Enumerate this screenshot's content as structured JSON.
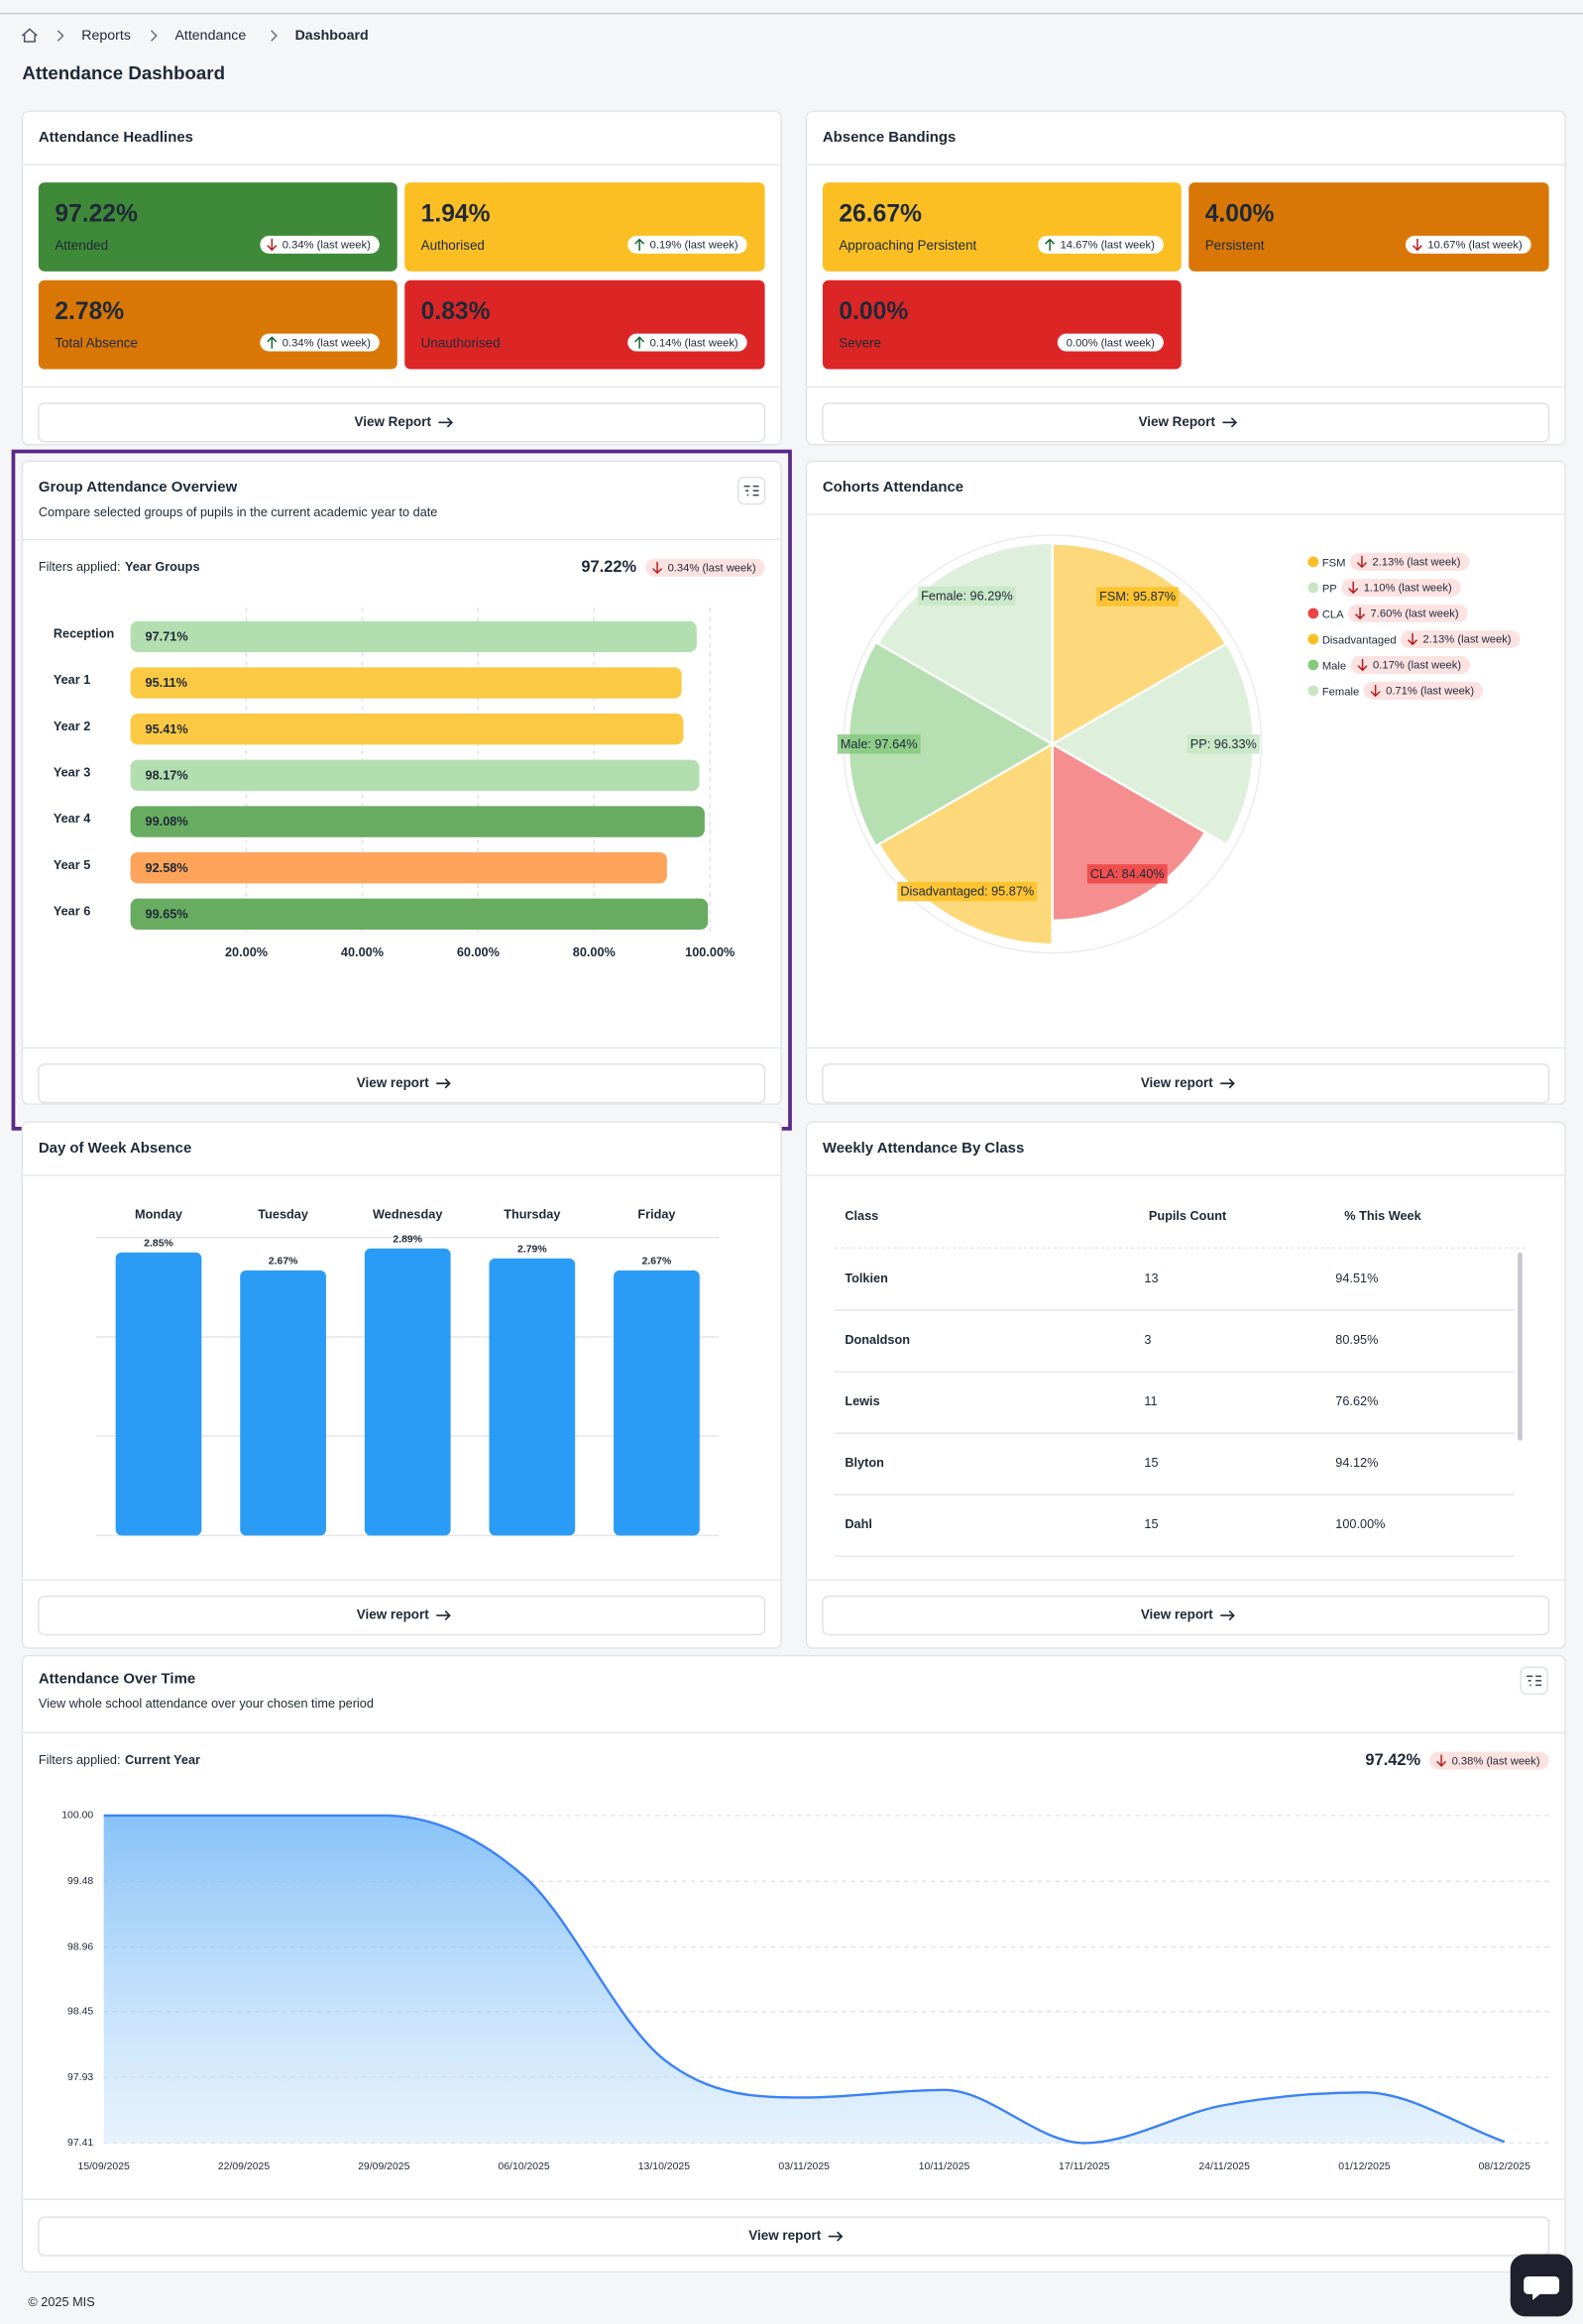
{
  "page": {
    "breadcrumb": [
      "Reports",
      "Attendance",
      "Dashboard"
    ],
    "title": "Attendance Dashboard",
    "headlines": {
      "title": "Attendance Headlines",
      "cards": [
        {
          "value": "97.22%",
          "label": "Attended",
          "change": "0.34% (last week)",
          "direction": "down",
          "color": "#3f8a38",
          "text_color": "#ffffff"
        },
        {
          "value": "1.94%",
          "label": "Authorised",
          "change": "0.19% (last week)",
          "direction": "up",
          "color": "#fbbf24",
          "text_color": "#1f2937"
        },
        {
          "value": "2.78%",
          "label": "Total Absence",
          "change": "0.34% (last week)",
          "direction": "up",
          "color": "#d97706",
          "text_color": "#ffffff"
        },
        {
          "value": "0.83%",
          "label": "Unauthorised",
          "change": "0.14% (last week)",
          "direction": "up",
          "color": "#dc2626",
          "text_color": "#ffffff"
        }
      ],
      "button": "View Report"
    },
    "bandings": {
      "title": "Absence Bandings",
      "cards": [
        {
          "value": "26.67%",
          "label": "Approaching Persistent",
          "change": "14.67% (last week)",
          "direction": "up",
          "color": "#fbbf24",
          "text_color": "#1f2937"
        },
        {
          "value": "4.00%",
          "label": "Persistent",
          "change": "10.67% (last week)",
          "direction": "down",
          "color": "#d97706",
          "text_color": "#ffffff"
        },
        {
          "value": "0.00%",
          "label": "Severe",
          "change": "0.00% (last week)",
          "direction": "none",
          "color": "#dc2626",
          "text_color": "#ffffff"
        }
      ],
      "button": "View Report"
    },
    "group_overview": {
      "title": "Group Attendance Overview",
      "subtitle": "Compare selected groups of pupils in the current academic year to date",
      "filters_label": "Filters applied:",
      "filter": "Year Groups",
      "total": "97.22%",
      "change": "0.34% (last week)",
      "direction": "down",
      "button": "View report"
    },
    "cohorts": {
      "title": "Cohorts Attendance",
      "button": "View report"
    },
    "day_of_week": {
      "title": "Day of Week Absence",
      "button": "View report"
    },
    "weekly_class": {
      "title": "Weekly Attendance By Class",
      "table": {
        "header": [
          "Class",
          "Pupils Count",
          "% This Week"
        ],
        "rows": [
          [
            "Tolkien",
            "13",
            "94.51%"
          ],
          [
            "Donaldson",
            "3",
            "80.95%"
          ],
          [
            "Lewis",
            "11",
            "76.62%"
          ],
          [
            "Blyton",
            "15",
            "94.12%"
          ],
          [
            "Dahl",
            "15",
            "100.00%"
          ]
        ]
      },
      "button": "View report"
    },
    "over_time": {
      "title": "Attendance Over Time",
      "subtitle": "View whole school attendance over your chosen time period",
      "filters_label": "Filters applied:",
      "filter": "Current Year",
      "total": "97.42%",
      "change": "0.38% (last week)",
      "direction": "down",
      "button": "View report"
    },
    "footer": "© 2025 MIS"
  },
  "chart_data": [
    {
      "type": "bar",
      "orientation": "horizontal",
      "categories": [
        "Reception",
        "Year 1",
        "Year 2",
        "Year 3",
        "Year 4",
        "Year 5",
        "Year 6"
      ],
      "values": [
        97.71,
        95.11,
        95.41,
        98.17,
        99.08,
        92.58,
        99.65
      ],
      "value_labels": [
        "97.71%",
        "95.11%",
        "95.41%",
        "98.17%",
        "99.08%",
        "92.58%",
        "99.65%"
      ],
      "colors": [
        "#b3dfb0",
        "#fbc943",
        "#fbc943",
        "#b3dfb0",
        "#67ac61",
        "#fda35a",
        "#67ac61"
      ],
      "xlim": [
        0,
        100
      ],
      "xticks": [
        {
          "value": 20,
          "label": "20.00%"
        },
        {
          "value": 40,
          "label": "40.00%"
        },
        {
          "value": 60,
          "label": "60.00%"
        },
        {
          "value": 80,
          "label": "80.00%"
        },
        {
          "value": 100,
          "label": "100.00%"
        }
      ],
      "grid": true
    },
    {
      "type": "polar",
      "categories": [
        "FSM",
        "PP",
        "CLA",
        "Disadvantaged",
        "Male",
        "Female"
      ],
      "values": [
        95.87,
        96.33,
        84.4,
        95.87,
        97.64,
        96.29
      ],
      "value_labels": [
        "FSM: 95.87%",
        "PP: 96.33%",
        "CLA: 84.40%",
        "Disadvantaged: 95.87%",
        "Male: 97.64%",
        "Female: 96.29%"
      ],
      "colors": [
        "#fbbf24",
        "#c8e6c5",
        "#ef4444",
        "#fbbf24",
        "#86c97f",
        "#c8e6c5"
      ],
      "changes": [
        "2.13% (last week)",
        "1.10% (last week)",
        "7.60% (last week)",
        "2.13% (last week)",
        "0.17% (last week)",
        "0.71% (last week)"
      ],
      "change_direction": "down",
      "rlim": [
        0,
        100
      ],
      "legend": "right"
    },
    {
      "type": "bar",
      "orientation": "vertical",
      "categories": [
        "Monday",
        "Tuesday",
        "Wednesday",
        "Thursday",
        "Friday"
      ],
      "values": [
        2.85,
        2.67,
        2.89,
        2.79,
        2.67
      ],
      "value_labels": [
        "2.85%",
        "2.67%",
        "2.89%",
        "2.79%",
        "2.67%"
      ],
      "color": "#2b9cf6",
      "ylim": [
        0,
        3
      ],
      "grid": true
    },
    {
      "type": "line",
      "x": [
        "15/09/2025",
        "22/09/2025",
        "29/09/2025",
        "06/10/2025",
        "13/10/2025",
        "03/11/2025",
        "10/11/2025",
        "17/11/2025",
        "24/11/2025",
        "01/12/2025",
        "08/12/2025"
      ],
      "values": [
        100,
        100,
        100,
        99.52,
        98.07,
        97.77,
        97.83,
        97.41,
        97.71,
        97.81,
        97.42
      ],
      "color": "#3b82f6",
      "ylim": [
        97.41,
        100
      ],
      "yticks": [
        {
          "value": 100,
          "label": "100.00"
        },
        99.48,
        98.96,
        98.45,
        97.93,
        97.41
      ],
      "grid": true,
      "area": true
    }
  ]
}
